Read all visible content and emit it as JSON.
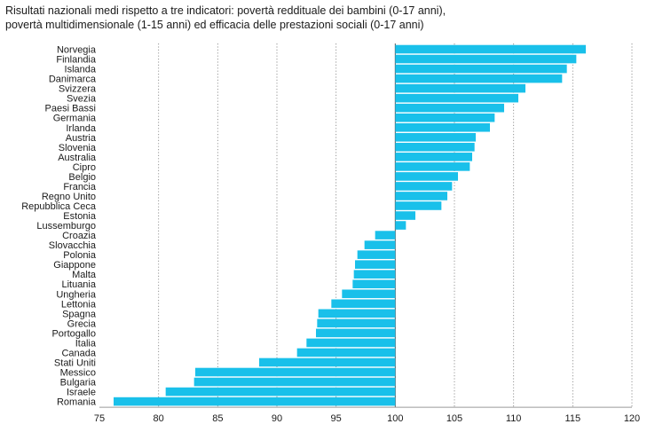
{
  "chart_data": {
    "type": "bar",
    "orientation": "horizontal",
    "title_lines": [
      "Risultati nazionali medi rispetto a tre indicatori: povertà reddituale dei bambini (0-17 anni),",
      "povertà multidimensionale (1-15 anni) ed efficacia delle prestazioni sociali (0-17 anni)"
    ],
    "baseline": 100,
    "xlim": [
      75,
      120
    ],
    "xticks": [
      "75",
      "80",
      "85",
      "90",
      "95",
      "100",
      "105",
      "110",
      "115",
      "120"
    ],
    "grid": "vertical dotted",
    "bar_color": "#19c0ea",
    "categories": [
      "Norvegia",
      "Finlandia",
      "Islanda",
      "Danimarca",
      "Svizzera",
      "Svezia",
      "Paesi Bassi",
      "Germania",
      "Irlanda",
      "Austria",
      "Slovenia",
      "Australia",
      "Cipro",
      "Belgio",
      "Francia",
      "Regno Unito",
      "Repubblica Ceca",
      "Estonia",
      "Lussemburgo",
      "Croazia",
      "Slovacchia",
      "Polonia",
      "Giappone",
      "Malta",
      "Lituania",
      "Ungheria",
      "Lettonia",
      "Spagna",
      "Grecia",
      "Portogallo",
      "Italia",
      "Canada",
      "Stati Uniti",
      "Messico",
      "Bulgaria",
      "Israele",
      "Romania"
    ],
    "values": [
      116.1,
      115.3,
      114.5,
      114.1,
      111.0,
      110.4,
      109.2,
      108.4,
      108.0,
      106.8,
      106.7,
      106.5,
      106.3,
      105.3,
      104.8,
      104.4,
      103.9,
      101.7,
      100.9,
      98.3,
      97.4,
      96.8,
      96.6,
      96.5,
      96.4,
      95.5,
      94.6,
      93.5,
      93.4,
      93.3,
      92.5,
      91.7,
      88.5,
      83.1,
      83.0,
      80.6,
      76.2
    ]
  }
}
